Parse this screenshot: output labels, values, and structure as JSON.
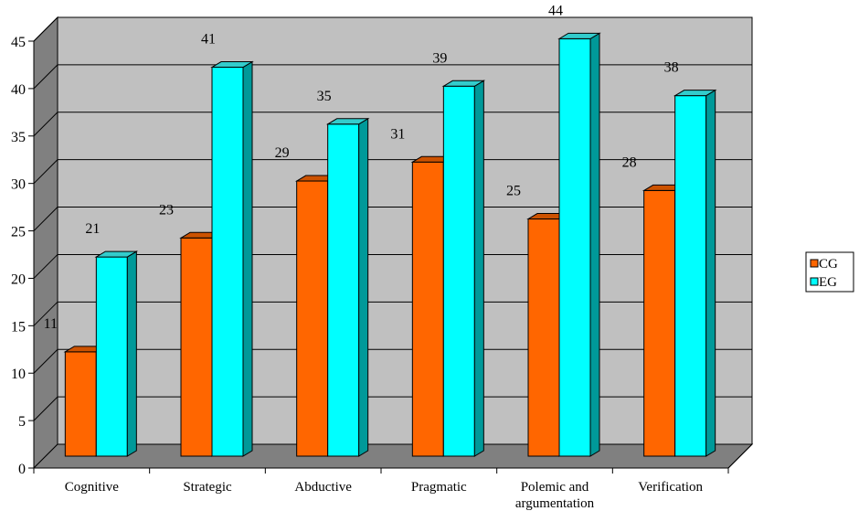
{
  "chart_data": {
    "type": "bar",
    "title": "",
    "xlabel": "",
    "ylabel": "",
    "categories": [
      "Cognitive",
      "Strategic",
      "Abductive",
      "Pragmatic",
      "Polemic and argumentation",
      "Verification"
    ],
    "category_lines": [
      [
        "Cognitive"
      ],
      [
        "Strategic"
      ],
      [
        "Abductive"
      ],
      [
        "Pragmatic"
      ],
      [
        "Polemic and",
        "argumentation"
      ],
      [
        "Verification"
      ]
    ],
    "series": [
      {
        "name": "CG",
        "values": [
          11,
          23,
          29,
          31,
          25,
          28
        ],
        "color": "#FF6600",
        "side_color": "#B34700",
        "top_color": "#CC5200"
      },
      {
        "name": "EG",
        "values": [
          21,
          41,
          35,
          39,
          44,
          38
        ],
        "color": "#00FFFF",
        "side_color": "#009999",
        "top_color": "#33CCCC"
      }
    ],
    "ylim": [
      0,
      45
    ],
    "yticks": [
      "0",
      "5",
      "10",
      "15",
      "20",
      "25",
      "30",
      "35",
      "40",
      "45"
    ],
    "grid": true,
    "legend_position": "right",
    "plot_wall_color": "#C0C0C0",
    "plot_floor_color": "#808080",
    "style": "3d-clustered-column"
  }
}
